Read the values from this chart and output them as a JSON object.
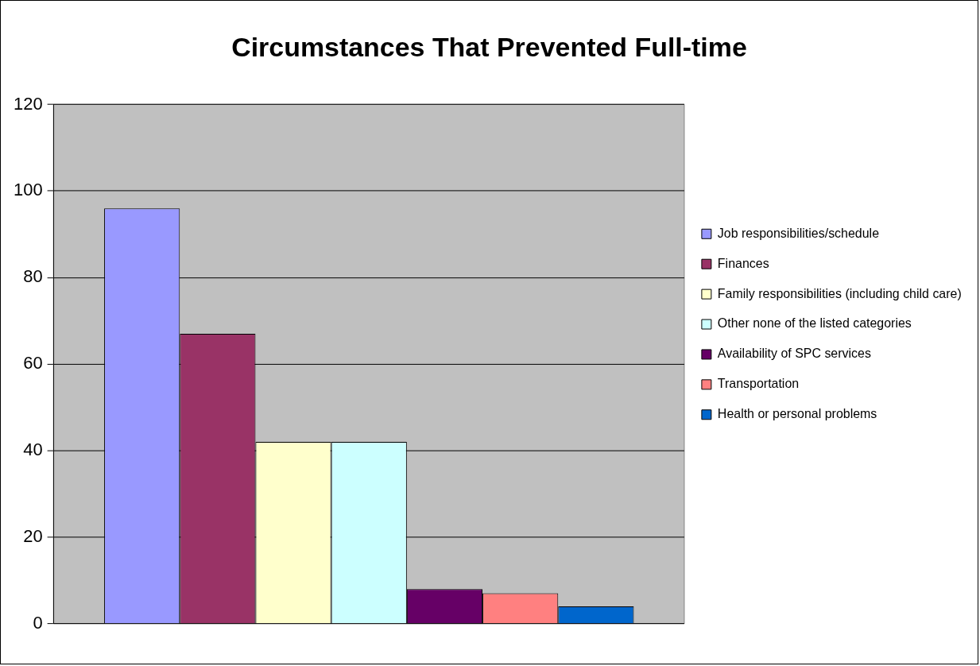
{
  "chart_data": {
    "type": "bar",
    "title": "Circumstances That Prevented Full-time",
    "categories": [
      null
    ],
    "series": [
      {
        "name": "Job responsibilities/schedule",
        "color": "#9999ff",
        "values": [
          96
        ]
      },
      {
        "name": "Finances",
        "color": "#993366",
        "values": [
          67
        ]
      },
      {
        "name": "Family responsibilities (including child care)",
        "color": "#ffffcc",
        "values": [
          42
        ]
      },
      {
        "name": "Other none of the listed categories",
        "color": "#ccffff",
        "values": [
          42
        ]
      },
      {
        "name": "Availability of SPC services",
        "color": "#660066",
        "values": [
          8
        ]
      },
      {
        "name": "Transportation",
        "color": "#ff8080",
        "values": [
          7
        ]
      },
      {
        "name": "Health or personal problems",
        "color": "#0066cc",
        "values": [
          4
        ]
      }
    ],
    "ylim": [
      0,
      120
    ],
    "yticks": [
      0,
      20,
      40,
      60,
      80,
      100,
      120
    ],
    "grid": "y",
    "legend": "right"
  }
}
